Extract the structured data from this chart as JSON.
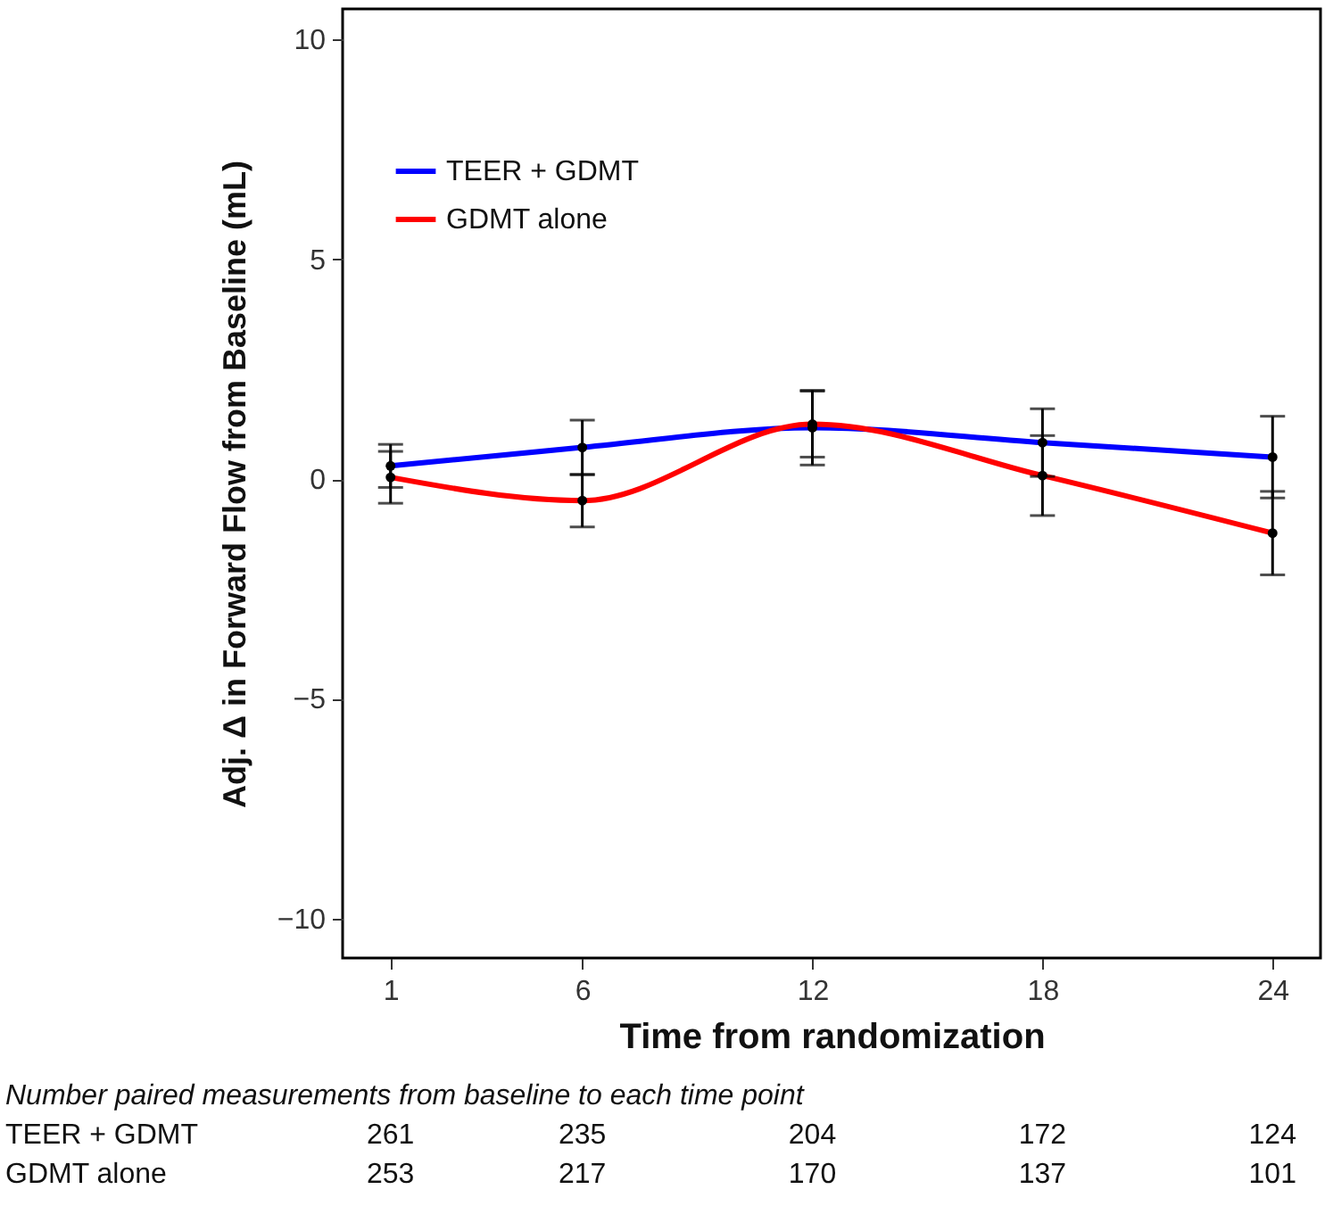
{
  "chart_data": {
    "type": "line",
    "xlabel": "Time from randomization",
    "ylabel": "Adj. Δ in Forward Flow from Baseline (mL)",
    "x": [
      1,
      6,
      12,
      18,
      24
    ],
    "xlim": [
      -0.25,
      25.25
    ],
    "xticks": [
      1,
      6,
      12,
      18,
      24
    ],
    "ylim": [
      -10.9,
      10.7
    ],
    "yticks": [
      -10,
      -5,
      0,
      5,
      10
    ],
    "series": [
      {
        "name": "TEER + GDMT",
        "color": "#0000ff",
        "values": [
          0.3,
          0.72,
          1.17,
          0.83,
          0.5
        ],
        "errors": [
          0.49,
          0.62,
          0.85,
          0.77,
          0.93
        ]
      },
      {
        "name": "GDMT alone",
        "color": "#ff0000",
        "values": [
          0.04,
          -0.49,
          1.25,
          0.08,
          -1.23
        ],
        "errors": [
          0.59,
          0.6,
          0.75,
          0.91,
          0.95
        ]
      }
    ],
    "marker": "circle",
    "line_style": "solid",
    "grid": false,
    "legend": "top left",
    "annotations": [
      "Number paired measurements from baseline to each time point",
      "261",
      "235",
      "204",
      "172",
      "124",
      "253",
      "217",
      "170",
      "137",
      "101"
    ]
  }
}
